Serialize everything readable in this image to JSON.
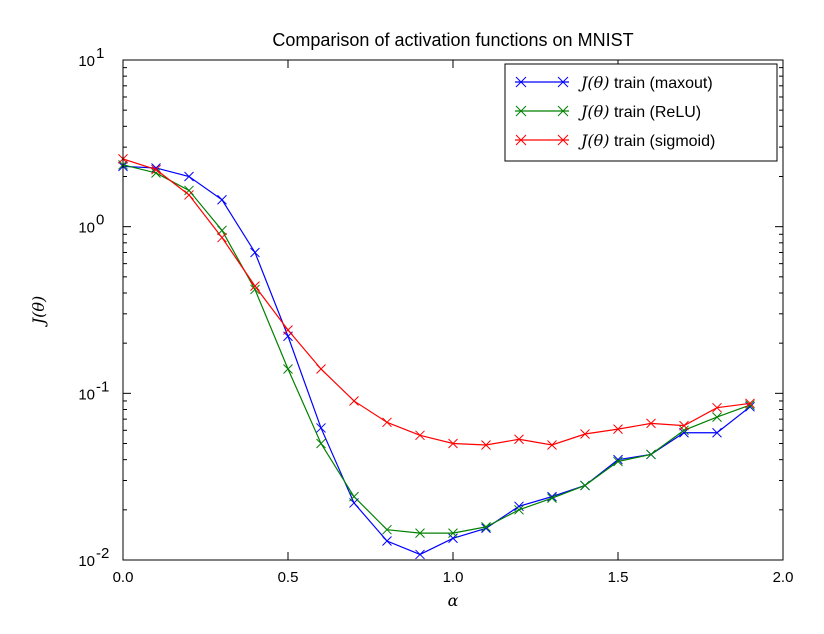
{
  "chart_data": {
    "type": "line",
    "title": "Comparison of activation functions on MNIST",
    "xlabel": "α",
    "ylabel": "J(θ)",
    "xlim": [
      0.0,
      2.0
    ],
    "ylim": [
      0.01,
      10
    ],
    "yscale": "log",
    "grid": false,
    "legend_position": "top-right",
    "x_ticks": [
      "0.0",
      "0.5",
      "1.0",
      "1.5",
      "2.0"
    ],
    "y_ticks": [
      {
        "value": 0.01,
        "base": "10",
        "exp": "-2"
      },
      {
        "value": 0.1,
        "base": "10",
        "exp": "-1"
      },
      {
        "value": 1,
        "base": "10",
        "exp": "0"
      },
      {
        "value": 10,
        "base": "10",
        "exp": "1"
      }
    ],
    "x": [
      0.0,
      0.1,
      0.2,
      0.3,
      0.4,
      0.5,
      0.6,
      0.7,
      0.8,
      0.9,
      1.0,
      1.1,
      1.2,
      1.3,
      1.4,
      1.5,
      1.6,
      1.7,
      1.8,
      1.9
    ],
    "series": [
      {
        "name_math": "J(θ)",
        "name_text": " train (maxout)",
        "color": "#0000ff",
        "values": [
          2.3,
          2.25,
          2.0,
          1.45,
          0.7,
          0.22,
          0.062,
          0.022,
          0.013,
          0.0108,
          0.0135,
          0.0155,
          0.021,
          0.024,
          0.028,
          0.04,
          0.043,
          0.058,
          0.058,
          0.083
        ]
      },
      {
        "name_math": "J(θ)",
        "name_text": " train (ReLU)",
        "color": "#008000",
        "values": [
          2.35,
          2.1,
          1.65,
          0.95,
          0.42,
          0.14,
          0.05,
          0.024,
          0.0152,
          0.0145,
          0.0145,
          0.0158,
          0.02,
          0.0235,
          0.028,
          0.039,
          0.043,
          0.06,
          0.072,
          0.085
        ]
      },
      {
        "name_math": "J(θ)",
        "name_text": " train (sigmoid)",
        "color": "#ff0000",
        "values": [
          2.55,
          2.2,
          1.55,
          0.86,
          0.44,
          0.24,
          0.14,
          0.09,
          0.067,
          0.056,
          0.05,
          0.049,
          0.053,
          0.049,
          0.057,
          0.061,
          0.066,
          0.064,
          0.082,
          0.087
        ]
      }
    ]
  }
}
